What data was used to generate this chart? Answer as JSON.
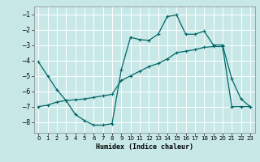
{
  "xlabel": "Humidex (Indice chaleur)",
  "ylabel": "",
  "bg_color": "#c8e8e8",
  "line_color": "#006666",
  "grid_color": "#ffffff",
  "xlim": [
    -0.5,
    23.5
  ],
  "ylim": [
    -8.7,
    -0.5
  ],
  "yticks": [
    -8,
    -7,
    -6,
    -5,
    -4,
    -3,
    -2,
    -1
  ],
  "xticks": [
    0,
    1,
    2,
    3,
    4,
    5,
    6,
    7,
    8,
    9,
    10,
    11,
    12,
    13,
    14,
    15,
    16,
    17,
    18,
    19,
    20,
    21,
    22,
    23
  ],
  "curve1_x": [
    0,
    1,
    2,
    3,
    4,
    5,
    6,
    7,
    8,
    9,
    10,
    11,
    12,
    13,
    14,
    15,
    16,
    17,
    18,
    19,
    20,
    21,
    22,
    23
  ],
  "curve1_y": [
    -4.1,
    -5.0,
    -5.9,
    -6.6,
    -7.5,
    -7.9,
    -8.2,
    -8.2,
    -8.1,
    -4.6,
    -2.5,
    -2.65,
    -2.7,
    -2.3,
    -1.15,
    -1.05,
    -2.3,
    -2.3,
    -2.1,
    -3.0,
    -3.0,
    -5.2,
    -6.5,
    -7.0
  ],
  "curve2_x": [
    0,
    1,
    2,
    3,
    4,
    5,
    6,
    7,
    8,
    9,
    10,
    11,
    12,
    13,
    14,
    15,
    16,
    17,
    18,
    19,
    20,
    21,
    22,
    23
  ],
  "curve2_y": [
    -7.0,
    -6.9,
    -6.7,
    -6.6,
    -6.55,
    -6.5,
    -6.4,
    -6.3,
    -6.2,
    -5.3,
    -5.0,
    -4.7,
    -4.4,
    -4.2,
    -3.9,
    -3.5,
    -3.4,
    -3.3,
    -3.15,
    -3.1,
    -3.1,
    -7.0,
    -7.0,
    -7.0
  ]
}
